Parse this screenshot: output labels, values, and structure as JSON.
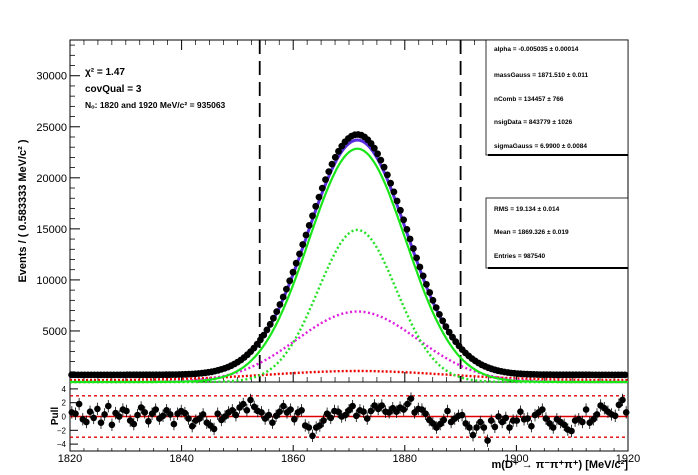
{
  "chart_data": [
    {
      "type": "line",
      "panel": "fit",
      "ylabel": "Events / ( 0.583333  MeV/c² )",
      "x_range": [
        1820,
        1920
      ],
      "ylim": [
        0,
        33500
      ],
      "x_ticks": [
        1820,
        1840,
        1860,
        1880,
        1900,
        1920
      ],
      "y_ticks": [
        5000,
        10000,
        15000,
        20000,
        25000,
        30000
      ],
      "y_tick_labels": [
        "5000",
        "10000",
        "15000",
        "20000",
        "25000",
        "30000"
      ],
      "x_tick_labels": [
        "1820",
        "1840",
        "1860",
        "1880",
        "1900",
        "1920"
      ],
      "signal_window_lines": [
        1854,
        1890
      ],
      "fit_info": {
        "chi2": "χ² = 1.47",
        "covqual": "covQual = 3",
        "nobs": "Nₒ: 1820 and  1920 MeV/c² = 935063"
      },
      "parameters": [
        "alpha = -0.005035 ± 0.00014",
        "massGauss  =  1871.510 ± 0.011",
        "nComb  =  134457 ± 766",
        "nsigData  =  843779 ± 1026",
        "sigmaGauss  =  6.9900 ± 0.0084"
      ],
      "stats": [
        "RMS  =  19.134 ± 0.014",
        "Mean  =  1869.326 ± 0.019",
        "Entries  =  987540"
      ],
      "series": [
        {
          "name": "data",
          "style": "black markers",
          "color": "#000000"
        },
        {
          "name": "total fit",
          "style": "solid",
          "color": "#5a2ee0"
        },
        {
          "name": "signal",
          "style": "solid",
          "color": "#19e619"
        },
        {
          "name": "gaussian component",
          "style": "dotted",
          "color": "#22e022"
        },
        {
          "name": "wide component",
          "style": "dotted",
          "color": "#e01ee0"
        },
        {
          "name": "combinatorial background",
          "style": "dotted",
          "color": "#ee0000"
        }
      ],
      "model": {
        "mean": 1871.5,
        "total_peak": 23000,
        "signal_peak": 22850,
        "gauss_peak": 14900,
        "gauss_sigma": 7.0,
        "wide_peak": 6900,
        "wide_sigma": 10.8,
        "comb_peak": 900,
        "comb_sigma": 16,
        "base_level": 700,
        "data_peak": 23550
      }
    },
    {
      "type": "scatter",
      "panel": "pull",
      "ylabel": "Pull",
      "xlabel": "m(D⁺ → π⁻π⁺π⁺) [MeV/c²]",
      "x_range": [
        1820,
        1920
      ],
      "ylim": [
        -5,
        5
      ],
      "y_ticks": [
        -4,
        -2,
        0,
        2,
        4
      ],
      "y_tick_labels": [
        "−4",
        "−2",
        "0",
        "2",
        "4"
      ],
      "reference_lines": [
        -3,
        0,
        3
      ],
      "pulls": [
        0.6,
        0.4,
        1.8,
        -0.4,
        -0.8,
        0.7,
        -0.2,
        1.1,
        -0.9,
        0.3,
        1.5,
        -1.2,
        0.5,
        0.0,
        1.0,
        0.8,
        -0.6,
        -1.1,
        0.2,
        1.3,
        0.6,
        -0.7,
        0.4,
        1.0,
        -0.3,
        0.1,
        0.9,
        0.3,
        -1.1,
        0.4,
        0.8,
        0.5,
        -0.3,
        -1.4,
        -0.6,
        -0.3,
        0.3,
        -0.9,
        -1.3,
        -1.8,
        0.4,
        -0.5,
        0.0,
        0.6,
        0.9,
        0.2,
        1.3,
        1.8,
        0.9,
        2.4,
        1.4,
        0.8,
        0.6,
        -0.3,
        0.2,
        -0.9,
        0.1,
        0.7,
        1.5,
        0.6,
        1.0,
        -0.4,
        0.6,
        0.9,
        -1.3,
        -1.6,
        -2.8,
        -1.6,
        -1.3,
        -0.6,
        0.4,
        -0.2,
        0.8,
        0.7,
        0.0,
        0.2,
        0.9,
        1.5,
        0.1,
        0.9,
        0.7,
        -0.3,
        0.8,
        1.6,
        1.1,
        1.6,
        0.7,
        0.6,
        1.2,
        0.7,
        1.3,
        1.0,
        1.8,
        2.6,
        0.6,
        1.1,
        1.0,
        0.4,
        -0.5,
        -1.0,
        -1.6,
        -1.1,
        -0.5,
        0.8,
        -0.8,
        -0.3,
        0.1,
        0.2,
        -1.0,
        -1.6,
        -2.7,
        -1.6,
        -0.8,
        -1.6,
        -3.5,
        -0.6,
        -1.5,
        0.0,
        -0.8,
        -0.2,
        -1.6,
        -0.6,
        -0.6,
        0.7,
        -0.4,
        -0.3,
        -1.4,
        0.2,
        0.6,
        1.0,
        -0.3,
        -1.0,
        -1.6,
        -0.4,
        -0.8,
        -1.2,
        -1.9,
        -2.1,
        -0.6,
        -0.4,
        -0.8,
        1.0,
        -0.9,
        -0.4,
        0.3,
        1.6,
        1.2,
        0.7,
        0.3,
        0.1,
        1.7,
        2.4,
        0.6
      ]
    }
  ]
}
